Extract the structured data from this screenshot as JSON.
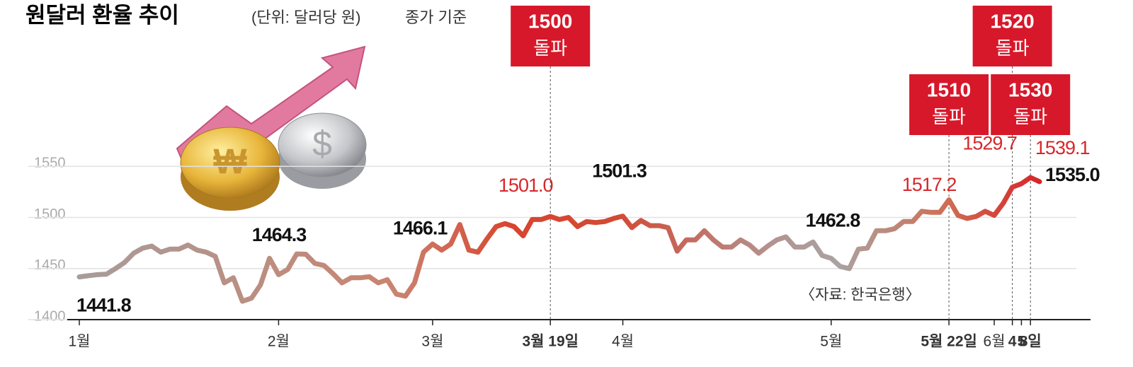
{
  "chart_data": {
    "type": "line",
    "title": "원달러 환율 추이",
    "subtitle": "(단위: 달러당 원)",
    "note": "종가 기준",
    "source": "〈자료: 한국은행〉",
    "categories": [
      "1월",
      null,
      null,
      null,
      null,
      null,
      null,
      null,
      null,
      null,
      null,
      null,
      null,
      null,
      null,
      null,
      null,
      null,
      null,
      null,
      null,
      null,
      "2월",
      null,
      null,
      null,
      null,
      null,
      null,
      null,
      null,
      null,
      null,
      null,
      null,
      null,
      null,
      null,
      null,
      "3월",
      null,
      null,
      null,
      null,
      null,
      null,
      null,
      null,
      null,
      null,
      null,
      null,
      "3월 19일",
      null,
      null,
      null,
      null,
      null,
      null,
      null,
      "4월",
      null,
      null,
      null,
      null,
      null,
      null,
      null,
      null,
      null,
      null,
      null,
      null,
      null,
      null,
      null,
      null,
      null,
      null,
      null,
      null,
      null,
      null,
      "5월",
      null,
      null,
      null,
      null,
      null,
      null,
      null,
      null,
      null,
      null,
      null,
      null,
      "5월 22일",
      null,
      null,
      null,
      null,
      "6월",
      null,
      "4",
      "5",
      "8일",
      null
    ],
    "values": [
      1441.8,
      1443,
      1444,
      1444.5,
      1450,
      1456,
      1465,
      1470,
      1472,
      1466,
      1469,
      1469,
      1473,
      1468,
      1466,
      1462,
      1436,
      1441,
      1418,
      1421,
      1434,
      1460,
      1444,
      1449,
      1464.3,
      1464,
      1455,
      1453,
      1445,
      1436,
      1441,
      1441,
      1442,
      1436,
      1439,
      1425,
      1423,
      1436,
      1466.1,
      1474,
      1468,
      1474,
      1493,
      1468,
      1466,
      1479,
      1491,
      1494,
      1491,
      1482,
      1498,
      1498,
      1501.0,
      1498,
      1500,
      1491,
      1496,
      1495,
      1496,
      1499,
      1501.3,
      1490,
      1497,
      1492,
      1492,
      1490,
      1467,
      1478,
      1478,
      1487,
      1478,
      1471,
      1471,
      1478,
      1473,
      1465,
      1472,
      1478,
      1481,
      1471,
      1471,
      1476,
      1462.8,
      1460,
      1452,
      1450,
      1469,
      1470,
      1487,
      1487,
      1489,
      1496,
      1496,
      1506,
      1505,
      1505,
      1517.2,
      1502,
      1499,
      1501,
      1506,
      1502,
      1514,
      1529.7,
      1533,
      1539.1,
      1535.0
    ],
    "value_labels": [
      "1441.8",
      null,
      null,
      null,
      null,
      null,
      null,
      null,
      null,
      null,
      null,
      null,
      null,
      null,
      null,
      null,
      null,
      null,
      null,
      null,
      null,
      null,
      null,
      null,
      "1464.3",
      null,
      null,
      null,
      null,
      null,
      null,
      null,
      null,
      null,
      null,
      null,
      null,
      null,
      "1466.1",
      null,
      null,
      null,
      null,
      null,
      null,
      null,
      null,
      null,
      null,
      null,
      null,
      null,
      "1501.0",
      null,
      null,
      null,
      null,
      null,
      null,
      null,
      "1501.3",
      null,
      null,
      null,
      null,
      null,
      null,
      null,
      null,
      null,
      null,
      null,
      null,
      null,
      null,
      null,
      null,
      null,
      null,
      null,
      null,
      null,
      "1462.8",
      null,
      null,
      null,
      null,
      null,
      null,
      null,
      null,
      null,
      null,
      null,
      null,
      null,
      "1517.2",
      null,
      null,
      null,
      null,
      null,
      null,
      "1529.7",
      null,
      "1539.1",
      "1535.0"
    ],
    "color": "#d7262a",
    "annotations": [
      {
        "at": 52,
        "title": "1500",
        "text": "돌파"
      },
      {
        "at": 96,
        "title": "1510",
        "text": "돌파"
      },
      {
        "at": 103,
        "title": "1520",
        "text": "돌파"
      },
      {
        "at": 105,
        "title": "1530",
        "text": "돌파"
      }
    ],
    "ylim": [
      1400,
      1600
    ],
    "yticks": [
      1400,
      1450,
      1500,
      1550
    ],
    "grid": true
  }
}
